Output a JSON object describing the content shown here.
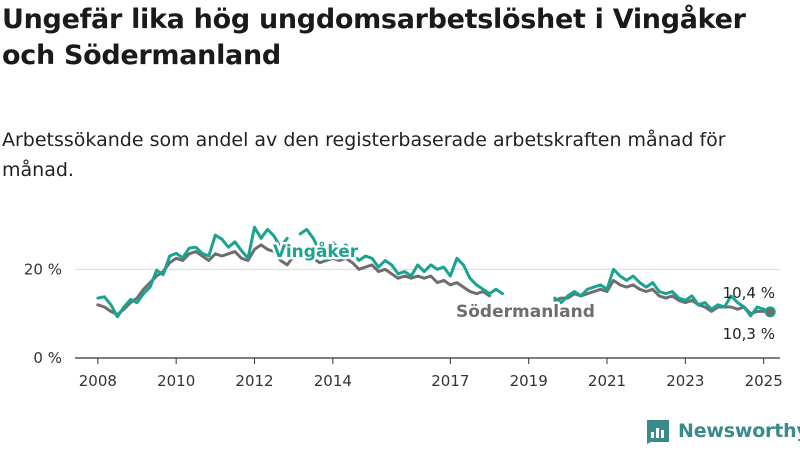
{
  "header": {
    "title": "Ungefär lika hög ungdomsarbetslöshet i Vingåker och Södermanland",
    "subtitle": "Arbetssökande som andel av den registerbaserade arbetskraften månad för månad."
  },
  "brand": {
    "name": "Newsworthy",
    "logo_icon": "newsworthy-logo-icon"
  },
  "colors": {
    "vingaker": "#1aa391",
    "sodermanland": "#6e6e6e",
    "grid": "#dcdcdc",
    "axis": "#333333"
  },
  "chart_data": {
    "type": "line",
    "title": "Ungefär lika hög ungdomsarbetslöshet i Vingåker och Södermanland",
    "subtitle": "Arbetssökande som andel av den registerbaserade arbetskraften månad för månad.",
    "xlabel": "",
    "ylabel": "",
    "x_ticks": [
      "2008",
      "2010",
      "2012",
      "2014",
      "2017",
      "2019",
      "2021",
      "2023",
      "2025"
    ],
    "y_ticks": [
      "0 %",
      "20 %"
    ],
    "ylim": [
      0,
      30
    ],
    "xlim": [
      "2007-06",
      "2025-06"
    ],
    "grid": "horizontal",
    "series": [
      {
        "name": "Vingåker",
        "color": "#1aa391",
        "end_label": "10,4 %",
        "end_value": 10.4,
        "points": [
          [
            "2008-01",
            13.5
          ],
          [
            "2008-03",
            13.8
          ],
          [
            "2008-05",
            12.0
          ],
          [
            "2008-07",
            9.3
          ],
          [
            "2008-09",
            11.5
          ],
          [
            "2008-11",
            13.2
          ],
          [
            "2009-01",
            12.5
          ],
          [
            "2009-03",
            14.5
          ],
          [
            "2009-05",
            16.0
          ],
          [
            "2009-07",
            19.8
          ],
          [
            "2009-09",
            18.8
          ],
          [
            "2009-11",
            23.0
          ],
          [
            "2010-01",
            23.6
          ],
          [
            "2010-03",
            22.6
          ],
          [
            "2010-05",
            24.8
          ],
          [
            "2010-07",
            25.0
          ],
          [
            "2010-09",
            23.6
          ],
          [
            "2010-11",
            23.0
          ],
          [
            "2011-01",
            27.7
          ],
          [
            "2011-03",
            26.8
          ],
          [
            "2011-05",
            25.0
          ],
          [
            "2011-07",
            26.2
          ],
          [
            "2011-09",
            24.2
          ],
          [
            "2011-11",
            22.5
          ],
          [
            "2012-01",
            29.5
          ],
          [
            "2012-03",
            27.0
          ],
          [
            "2012-05",
            29.0
          ],
          [
            "2012-07",
            27.5
          ],
          [
            "2012-09",
            25.0
          ],
          [
            "2012-11",
            27.0
          ]
        ],
        "points_b": [
          [
            "2013-03",
            28.0
          ],
          [
            "2013-05",
            29.0
          ],
          [
            "2013-07",
            27.0
          ],
          [
            "2013-09",
            24.0
          ],
          [
            "2013-11",
            22.0
          ],
          [
            "2014-01",
            26.0
          ],
          [
            "2014-03",
            24.5
          ],
          [
            "2014-05",
            25.5
          ],
          [
            "2014-07",
            23.5
          ],
          [
            "2014-09",
            22.0
          ],
          [
            "2014-11",
            23.0
          ],
          [
            "2015-01",
            22.5
          ],
          [
            "2015-03",
            20.5
          ],
          [
            "2015-05",
            22.0
          ],
          [
            "2015-07",
            21.0
          ],
          [
            "2015-09",
            19.0
          ],
          [
            "2015-11",
            19.5
          ],
          [
            "2016-01",
            18.5
          ],
          [
            "2016-03",
            21.0
          ],
          [
            "2016-05",
            19.5
          ],
          [
            "2016-07",
            21.0
          ],
          [
            "2016-09",
            20.0
          ],
          [
            "2016-11",
            20.5
          ],
          [
            "2017-01",
            18.5
          ],
          [
            "2017-03",
            22.5
          ],
          [
            "2017-05",
            21.0
          ],
          [
            "2017-07",
            18.0
          ],
          [
            "2017-09",
            16.5
          ],
          [
            "2017-11",
            15.5
          ],
          [
            "2018-01",
            14.5
          ],
          [
            "2018-03",
            15.5
          ],
          [
            "2018-05",
            14.5
          ]
        ],
        "points_c": [
          [
            "2019-09",
            13.5
          ],
          [
            "2019-11",
            12.5
          ],
          [
            "2020-01",
            14.0
          ],
          [
            "2020-03",
            15.0
          ],
          [
            "2020-05",
            14.0
          ],
          [
            "2020-07",
            15.5
          ],
          [
            "2020-09",
            16.0
          ],
          [
            "2020-11",
            16.5
          ],
          [
            "2021-01",
            15.5
          ],
          [
            "2021-03",
            20.0
          ],
          [
            "2021-05",
            18.5
          ],
          [
            "2021-07",
            17.5
          ],
          [
            "2021-09",
            18.5
          ],
          [
            "2021-11",
            17.0
          ],
          [
            "2022-01",
            16.0
          ],
          [
            "2022-03",
            17.0
          ],
          [
            "2022-05",
            15.0
          ],
          [
            "2022-07",
            14.5
          ],
          [
            "2022-09",
            15.0
          ],
          [
            "2022-11",
            13.5
          ],
          [
            "2023-01",
            13.0
          ],
          [
            "2023-03",
            14.0
          ],
          [
            "2023-05",
            12.0
          ],
          [
            "2023-07",
            12.5
          ],
          [
            "2023-09",
            11.0
          ],
          [
            "2023-11",
            12.0
          ],
          [
            "2024-01",
            11.5
          ],
          [
            "2024-03",
            14.0
          ],
          [
            "2024-05",
            12.5
          ],
          [
            "2024-07",
            11.5
          ],
          [
            "2024-09",
            9.5
          ],
          [
            "2024-11",
            11.5
          ],
          [
            "2025-01",
            11.0
          ],
          [
            "2025-03",
            10.4
          ]
        ]
      },
      {
        "name": "Södermanland",
        "color": "#6e6e6e",
        "end_label": "10,3 %",
        "end_value": 10.3,
        "points": [
          [
            "2008-01",
            12.0
          ],
          [
            "2008-03",
            11.5
          ],
          [
            "2008-05",
            10.5
          ],
          [
            "2008-07",
            9.8
          ],
          [
            "2008-09",
            11.0
          ],
          [
            "2008-11",
            12.5
          ],
          [
            "2009-01",
            13.5
          ],
          [
            "2009-03",
            15.5
          ],
          [
            "2009-05",
            17.0
          ],
          [
            "2009-07",
            18.5
          ],
          [
            "2009-09",
            19.5
          ],
          [
            "2009-11",
            21.5
          ],
          [
            "2010-01",
            22.5
          ],
          [
            "2010-03",
            22.0
          ],
          [
            "2010-05",
            23.5
          ],
          [
            "2010-07",
            24.0
          ],
          [
            "2010-09",
            23.0
          ],
          [
            "2010-11",
            22.0
          ],
          [
            "2011-01",
            23.5
          ],
          [
            "2011-03",
            23.0
          ],
          [
            "2011-05",
            23.5
          ],
          [
            "2011-07",
            24.0
          ],
          [
            "2011-09",
            22.5
          ],
          [
            "2011-11",
            22.0
          ],
          [
            "2012-01",
            24.5
          ],
          [
            "2012-03",
            25.5
          ],
          [
            "2012-05",
            24.5
          ],
          [
            "2012-07",
            24.0
          ],
          [
            "2012-09",
            22.0
          ],
          [
            "2012-11",
            21.0
          ],
          [
            "2013-01",
            23.0
          ],
          [
            "2013-03",
            24.0
          ],
          [
            "2013-05",
            23.5
          ],
          [
            "2013-07",
            22.5
          ],
          [
            "2013-09",
            21.5
          ],
          [
            "2013-11",
            22.0
          ],
          [
            "2014-01",
            22.5
          ],
          [
            "2014-03",
            22.0
          ],
          [
            "2014-05",
            22.5
          ],
          [
            "2014-07",
            21.5
          ],
          [
            "2014-09",
            20.0
          ],
          [
            "2014-11",
            20.5
          ],
          [
            "2015-01",
            21.0
          ],
          [
            "2015-03",
            19.5
          ],
          [
            "2015-05",
            20.0
          ],
          [
            "2015-07",
            19.0
          ],
          [
            "2015-09",
            18.0
          ],
          [
            "2015-11",
            18.5
          ],
          [
            "2016-01",
            18.0
          ],
          [
            "2016-03",
            18.5
          ],
          [
            "2016-05",
            18.0
          ],
          [
            "2016-07",
            18.5
          ],
          [
            "2016-09",
            17.0
          ],
          [
            "2016-11",
            17.5
          ],
          [
            "2017-01",
            16.5
          ],
          [
            "2017-03",
            17.0
          ],
          [
            "2017-05",
            16.0
          ],
          [
            "2017-07",
            15.0
          ],
          [
            "2017-09",
            14.5
          ],
          [
            "2017-11",
            15.0
          ],
          [
            "2018-01",
            14.0
          ]
        ],
        "points_c": [
          [
            "2019-09",
            13.0
          ],
          [
            "2019-11",
            13.5
          ],
          [
            "2020-01",
            13.5
          ],
          [
            "2020-03",
            14.5
          ],
          [
            "2020-05",
            14.0
          ],
          [
            "2020-07",
            14.5
          ],
          [
            "2020-09",
            15.0
          ],
          [
            "2020-11",
            15.5
          ],
          [
            "2021-01",
            15.0
          ],
          [
            "2021-03",
            17.5
          ],
          [
            "2021-05",
            16.5
          ],
          [
            "2021-07",
            16.0
          ],
          [
            "2021-09",
            16.5
          ],
          [
            "2021-11",
            15.5
          ],
          [
            "2022-01",
            15.0
          ],
          [
            "2022-03",
            15.5
          ],
          [
            "2022-05",
            14.0
          ],
          [
            "2022-07",
            13.5
          ],
          [
            "2022-09",
            14.0
          ],
          [
            "2022-11",
            13.0
          ],
          [
            "2023-01",
            12.5
          ],
          [
            "2023-03",
            13.0
          ],
          [
            "2023-05",
            12.0
          ],
          [
            "2023-07",
            11.5
          ],
          [
            "2023-09",
            10.5
          ],
          [
            "2023-11",
            11.5
          ],
          [
            "2024-01",
            11.5
          ],
          [
            "2024-03",
            11.5
          ],
          [
            "2024-05",
            11.0
          ],
          [
            "2024-07",
            11.5
          ],
          [
            "2024-09",
            10.0
          ],
          [
            "2024-11",
            10.5
          ],
          [
            "2025-01",
            10.5
          ],
          [
            "2025-03",
            10.3
          ]
        ]
      }
    ]
  }
}
